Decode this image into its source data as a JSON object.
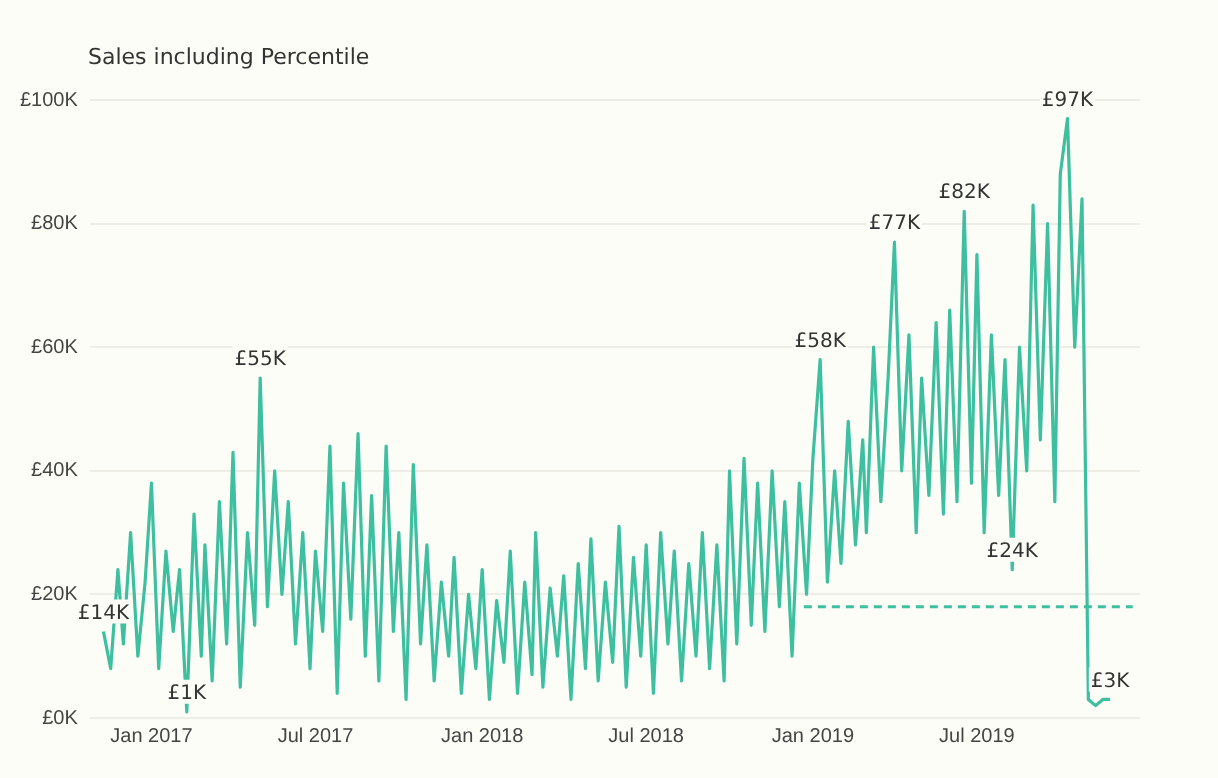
{
  "chart_data": {
    "type": "line",
    "title": "Sales including Percentile",
    "legend": false,
    "grid": "y",
    "marker": "none",
    "ylim": [
      0,
      100
    ],
    "yticks": [
      {
        "value": 0,
        "label": "£0K"
      },
      {
        "value": 20,
        "label": "£20K"
      },
      {
        "value": 40,
        "label": "£40K"
      },
      {
        "value": 60,
        "label": "£60K"
      },
      {
        "value": 80,
        "label": "£80K"
      },
      {
        "value": 100,
        "label": "£100K"
      }
    ],
    "xlim": [
      "2016-10-25",
      "2019-12-28"
    ],
    "xticks": [
      {
        "value": "2017-01-01",
        "label": "Jan 2017"
      },
      {
        "value": "2017-07-01",
        "label": "Jul 2017"
      },
      {
        "value": "2018-01-01",
        "label": "Jan 2018"
      },
      {
        "value": "2018-07-01",
        "label": "Jul 2018"
      },
      {
        "value": "2019-01-01",
        "label": "Jan 2019"
      },
      {
        "value": "2019-07-01",
        "label": "Jul 2019"
      }
    ],
    "series": [
      {
        "color": "#3dbfa0",
        "line_style": "solid",
        "x": [
          "2016-11-09",
          "2016-11-17",
          "2016-11-25",
          "2016-12-01",
          "2016-12-09",
          "2016-12-17",
          "2016-12-25",
          "2017-01-01",
          "2017-01-09",
          "2017-01-17",
          "2017-01-25",
          "2017-02-01",
          "2017-02-09",
          "2017-02-17",
          "2017-02-25",
          "2017-03-01",
          "2017-03-09",
          "2017-03-17",
          "2017-03-25",
          "2017-04-01",
          "2017-04-09",
          "2017-04-17",
          "2017-04-25",
          "2017-05-01",
          "2017-05-09",
          "2017-05-17",
          "2017-05-25",
          "2017-06-01",
          "2017-06-09",
          "2017-06-17",
          "2017-06-25",
          "2017-07-01",
          "2017-07-09",
          "2017-07-17",
          "2017-07-25",
          "2017-08-01",
          "2017-08-09",
          "2017-08-17",
          "2017-08-25",
          "2017-09-01",
          "2017-09-09",
          "2017-09-17",
          "2017-09-25",
          "2017-10-01",
          "2017-10-09",
          "2017-10-17",
          "2017-10-25",
          "2017-11-01",
          "2017-11-09",
          "2017-11-17",
          "2017-11-25",
          "2017-12-01",
          "2017-12-09",
          "2017-12-17",
          "2017-12-25",
          "2018-01-01",
          "2018-01-09",
          "2018-01-17",
          "2018-01-25",
          "2018-02-01",
          "2018-02-09",
          "2018-02-17",
          "2018-02-25",
          "2018-03-01",
          "2018-03-09",
          "2018-03-17",
          "2018-03-25",
          "2018-04-01",
          "2018-04-09",
          "2018-04-17",
          "2018-04-25",
          "2018-05-01",
          "2018-05-09",
          "2018-05-17",
          "2018-05-25",
          "2018-06-01",
          "2018-06-09",
          "2018-06-17",
          "2018-06-25",
          "2018-07-01",
          "2018-07-09",
          "2018-07-17",
          "2018-07-25",
          "2018-08-01",
          "2018-08-09",
          "2018-08-17",
          "2018-08-25",
          "2018-09-01",
          "2018-09-09",
          "2018-09-17",
          "2018-09-25",
          "2018-10-01",
          "2018-10-09",
          "2018-10-17",
          "2018-10-25",
          "2018-11-01",
          "2018-11-09",
          "2018-11-17",
          "2018-11-25",
          "2018-12-01",
          "2018-12-09",
          "2018-12-17",
          "2018-12-25",
          "2019-01-01",
          "2019-01-09",
          "2019-01-17",
          "2019-01-25",
          "2019-02-01",
          "2019-02-09",
          "2019-02-17",
          "2019-02-25",
          "2019-03-01",
          "2019-03-09",
          "2019-03-17",
          "2019-03-25",
          "2019-04-01",
          "2019-04-09",
          "2019-04-17",
          "2019-04-25",
          "2019-05-01",
          "2019-05-09",
          "2019-05-17",
          "2019-05-25",
          "2019-06-01",
          "2019-06-09",
          "2019-06-17",
          "2019-06-25",
          "2019-07-01",
          "2019-07-09",
          "2019-07-17",
          "2019-07-25",
          "2019-08-01",
          "2019-08-09",
          "2019-08-17",
          "2019-08-25",
          "2019-09-01",
          "2019-09-09",
          "2019-09-17",
          "2019-09-25",
          "2019-10-01",
          "2019-10-09",
          "2019-10-17",
          "2019-10-25",
          "2019-11-01",
          "2019-11-09",
          "2019-11-17",
          "2019-11-25"
        ],
        "values": [
          14,
          8,
          24,
          12,
          30,
          10,
          22,
          38,
          8,
          27,
          14,
          24,
          1,
          33,
          10,
          28,
          6,
          35,
          12,
          43,
          5,
          30,
          15,
          55,
          18,
          40,
          20,
          35,
          12,
          30,
          8,
          27,
          14,
          44,
          4,
          38,
          16,
          46,
          10,
          36,
          6,
          44,
          14,
          30,
          3,
          41,
          12,
          28,
          6,
          22,
          10,
          26,
          4,
          20,
          8,
          24,
          3,
          19,
          9,
          27,
          4,
          22,
          7,
          30,
          5,
          21,
          10,
          23,
          3,
          25,
          8,
          29,
          6,
          22,
          9,
          31,
          5,
          26,
          10,
          28,
          4,
          30,
          12,
          27,
          6,
          25,
          10,
          30,
          8,
          28,
          6,
          40,
          12,
          42,
          15,
          38,
          14,
          40,
          18,
          35,
          10,
          38,
          20,
          42,
          58,
          22,
          40,
          25,
          48,
          28,
          45,
          30,
          60,
          35,
          55,
          77,
          40,
          62,
          30,
          55,
          36,
          64,
          33,
          66,
          35,
          82,
          38,
          75,
          30,
          62,
          36,
          58,
          24,
          60,
          40,
          83,
          45,
          80,
          35,
          88,
          97,
          60,
          84,
          3,
          2,
          3,
          3
        ],
        "value_labels": [
          "£14K",
          null,
          null,
          null,
          null,
          null,
          null,
          null,
          null,
          null,
          null,
          null,
          "£1K",
          null,
          null,
          null,
          null,
          null,
          null,
          null,
          null,
          null,
          null,
          "£55K",
          null,
          null,
          null,
          null,
          null,
          null,
          null,
          null,
          null,
          null,
          null,
          null,
          null,
          null,
          null,
          null,
          null,
          null,
          null,
          null,
          null,
          null,
          null,
          null,
          null,
          null,
          null,
          null,
          null,
          null,
          null,
          null,
          null,
          null,
          null,
          null,
          null,
          null,
          null,
          null,
          null,
          null,
          null,
          null,
          null,
          null,
          null,
          null,
          null,
          null,
          null,
          null,
          null,
          null,
          null,
          null,
          null,
          null,
          null,
          null,
          null,
          null,
          null,
          null,
          null,
          null,
          null,
          null,
          null,
          null,
          null,
          null,
          null,
          null,
          null,
          null,
          null,
          null,
          null,
          null,
          "£58K",
          null,
          null,
          null,
          null,
          null,
          null,
          null,
          null,
          null,
          null,
          "£77K",
          null,
          null,
          null,
          null,
          null,
          null,
          null,
          null,
          null,
          "£82K",
          null,
          null,
          null,
          null,
          null,
          null,
          "£24K",
          null,
          null,
          null,
          null,
          null,
          null,
          null,
          "£97K",
          null,
          null,
          null,
          null,
          null,
          "£3K"
        ]
      },
      {
        "color": "#3dbfa0",
        "line_style": "dashed",
        "x": [
          "2018-12-22",
          "2019-12-20"
        ],
        "values": [
          18,
          18
        ]
      }
    ]
  }
}
